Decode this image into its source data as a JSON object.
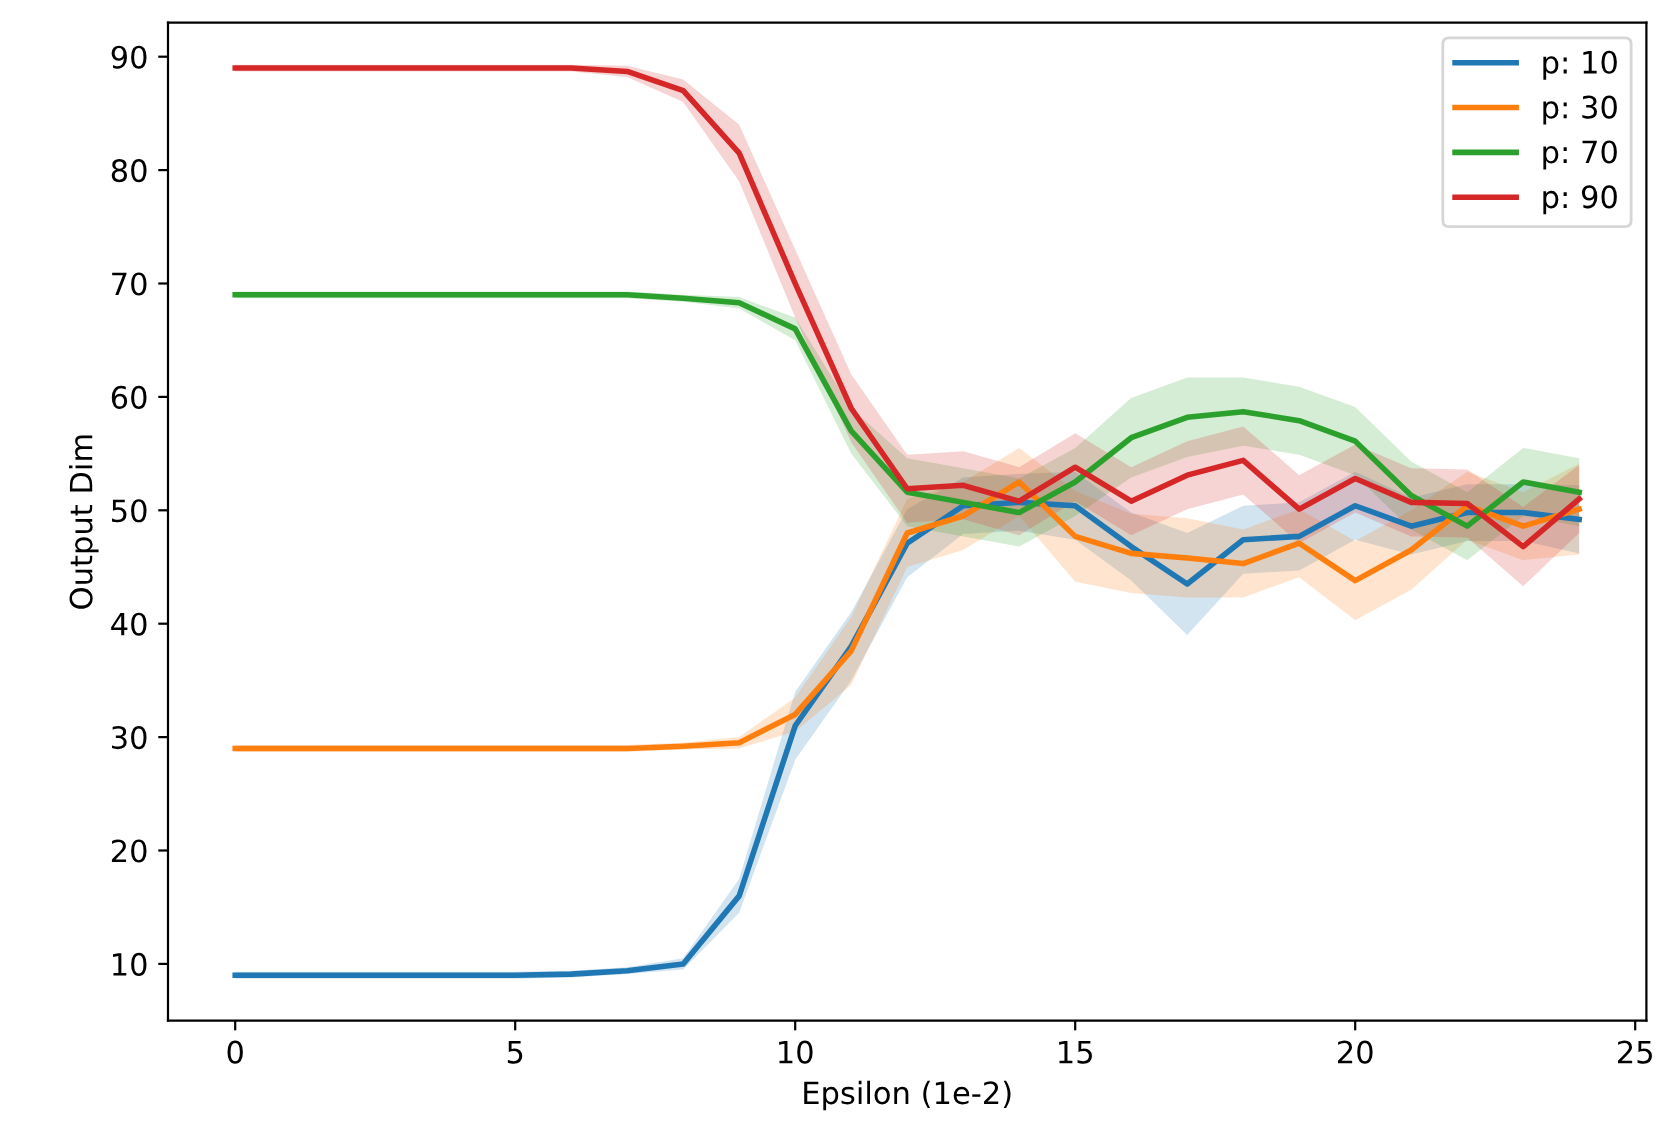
{
  "chart_data": {
    "type": "line",
    "xlabel": "Epsilon (1e-2)",
    "ylabel": "Output Dim",
    "x": [
      0,
      1,
      2,
      3,
      4,
      5,
      6,
      7,
      8,
      9,
      10,
      11,
      12,
      13,
      14,
      15,
      16,
      17,
      18,
      19,
      20,
      21,
      22,
      23,
      24
    ],
    "series": [
      {
        "name": "p: 10",
        "color": "#1f77b4",
        "values": [
          9,
          9,
          9,
          9,
          9,
          9,
          9.1,
          9.4,
          10,
          16,
          31,
          38,
          47.1,
          50.4,
          50.7,
          50.4,
          46.8,
          43.5,
          47.4,
          47.7,
          50.4,
          48.6,
          49.8,
          49.8,
          49.2
        ],
        "lower": [
          8.7,
          8.7,
          8.7,
          8.7,
          8.7,
          8.7,
          8.8,
          9.1,
          9.5,
          14.5,
          28,
          35,
          44.1,
          47.9,
          48.2,
          47.4,
          43.8,
          39,
          44.4,
          44.7,
          47.4,
          46.1,
          47.3,
          47.3,
          46.2
        ],
        "upper": [
          9.3,
          9.3,
          9.3,
          9.3,
          9.3,
          9.3,
          9.4,
          9.7,
          10.5,
          17.5,
          34,
          41,
          50.1,
          52.9,
          53.2,
          53.4,
          49.8,
          48,
          50.4,
          50.7,
          53.4,
          51.1,
          52.3,
          52.3,
          52.2
        ]
      },
      {
        "name": "p: 30",
        "color": "#ff7f0e",
        "values": [
          29,
          29,
          29,
          29,
          29,
          29,
          29,
          29,
          29.2,
          29.5,
          32,
          37.6,
          48,
          49.5,
          52.5,
          47.7,
          46.2,
          45.8,
          45.3,
          47.1,
          43.8,
          46.5,
          50.4,
          48.6,
          50.1
        ],
        "lower": [
          28.7,
          28.7,
          28.7,
          28.7,
          28.7,
          28.7,
          28.7,
          28.7,
          28.9,
          29,
          30.5,
          34.6,
          45,
          46.5,
          49.5,
          43.7,
          42.7,
          42.3,
          42.3,
          44.1,
          40.3,
          43,
          47.4,
          45.6,
          46.1
        ],
        "upper": [
          29.3,
          29.3,
          29.3,
          29.3,
          29.3,
          29.3,
          29.3,
          29.3,
          29.5,
          30,
          33.5,
          40.6,
          51,
          52.5,
          55.5,
          51.7,
          49.7,
          49.3,
          48.3,
          50.1,
          47.3,
          50,
          53.4,
          51.6,
          54.1
        ]
      },
      {
        "name": "p: 70",
        "color": "#2ca02c",
        "values": [
          69,
          69,
          69,
          69,
          69,
          69,
          69,
          69,
          68.7,
          68.3,
          66,
          57,
          51.6,
          50.7,
          49.8,
          52.5,
          56.4,
          58.2,
          58.7,
          57.9,
          56.1,
          51.3,
          48.6,
          52.5,
          51.6
        ],
        "lower": [
          68.7,
          68.7,
          68.7,
          68.7,
          68.7,
          68.7,
          68.7,
          68.7,
          68.4,
          67.8,
          65,
          55,
          48.6,
          47.7,
          46.8,
          49.5,
          52.9,
          54.7,
          55.7,
          54.9,
          53.1,
          48.3,
          45.6,
          49.5,
          48.6
        ],
        "upper": [
          69.3,
          69.3,
          69.3,
          69.3,
          69.3,
          69.3,
          69.3,
          69.3,
          69,
          68.8,
          67,
          59,
          54.6,
          53.7,
          52.8,
          55.5,
          59.9,
          61.7,
          61.7,
          60.9,
          59.1,
          54.3,
          51.6,
          55.5,
          54.6
        ]
      },
      {
        "name": "p: 90",
        "color": "#d62728",
        "values": [
          89,
          89,
          89,
          89,
          89,
          89,
          89,
          88.7,
          87,
          81.5,
          70,
          59,
          51.9,
          52.2,
          50.8,
          53.8,
          50.8,
          53.1,
          54.4,
          50.1,
          52.8,
          50.7,
          50.6,
          46.8,
          51
        ],
        "lower": [
          88.7,
          88.7,
          88.7,
          88.7,
          88.7,
          88.7,
          88.7,
          88.2,
          86,
          79,
          67,
          56,
          48.9,
          49.2,
          47.8,
          50.8,
          47.8,
          50.1,
          51.4,
          47.1,
          49.8,
          47.7,
          47.6,
          43.3,
          48
        ],
        "upper": [
          89.3,
          89.3,
          89.3,
          89.3,
          89.3,
          89.3,
          89.3,
          89.2,
          88,
          84,
          73,
          62,
          54.9,
          55.2,
          53.8,
          56.8,
          53.8,
          56.1,
          57.4,
          53.1,
          55.8,
          53.7,
          53.6,
          50.3,
          54
        ]
      }
    ],
    "xlim": [
      -1.2,
      25.2
    ],
    "xticks": [
      0,
      5,
      10,
      15,
      20,
      25
    ],
    "ylim": [
      5,
      93
    ],
    "yticks": [
      10,
      20,
      30,
      40,
      50,
      60,
      70,
      80,
      90
    ],
    "legend": "top right",
    "grid": false,
    "marker": "none",
    "line_style": "solid"
  }
}
